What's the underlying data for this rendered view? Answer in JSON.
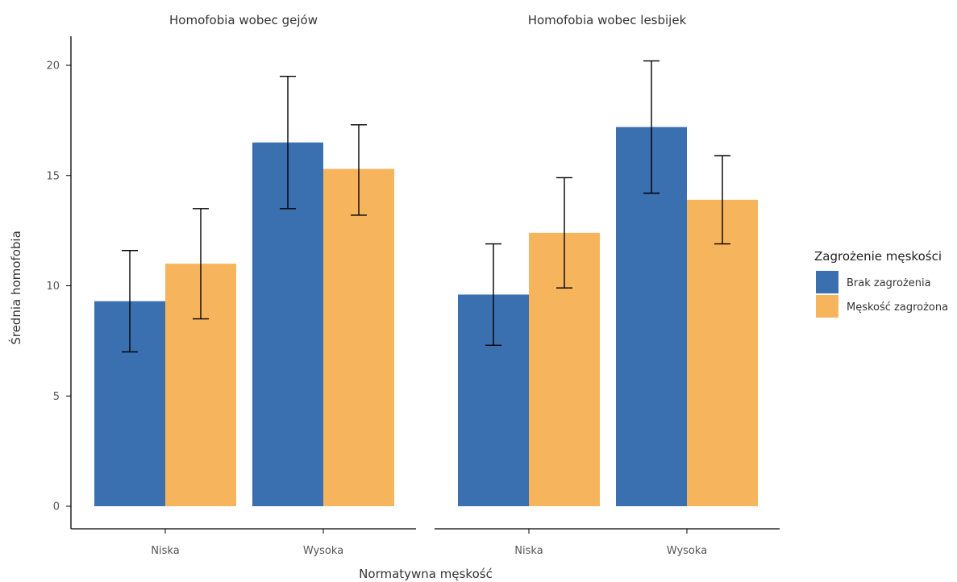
{
  "chart_data": {
    "type": "bar",
    "facets": [
      {
        "title": "Homofobia wobec gejów"
      },
      {
        "title": "Homofobia wobec lesbijek"
      }
    ],
    "categories": [
      "Niska",
      "Wysoka"
    ],
    "series": [
      {
        "name": "Brak zagrożenia",
        "color": "#3a6fb0"
      },
      {
        "name": "Męskość zagrożona",
        "color": "#f6b45c"
      }
    ],
    "data": [
      [
        [
          {
            "value": 9.3,
            "err": [
              7.0,
              11.6
            ]
          },
          {
            "value": 16.5,
            "err": [
              13.5,
              19.5
            ]
          }
        ],
        [
          {
            "value": 11.0,
            "err": [
              8.5,
              13.5
            ]
          },
          {
            "value": 15.3,
            "err": [
              13.2,
              17.3
            ]
          }
        ]
      ],
      [
        [
          {
            "value": 9.6,
            "err": [
              7.3,
              11.9
            ]
          },
          {
            "value": 17.2,
            "err": [
              14.2,
              20.2
            ]
          }
        ],
        [
          {
            "value": 12.4,
            "err": [
              9.9,
              14.9
            ]
          },
          {
            "value": 13.9,
            "err": [
              11.9,
              15.9
            ]
          }
        ]
      ]
    ],
    "xlabel": "Normatywna męskość",
    "ylabel": "Średnia homofobia",
    "ylim": [
      0,
      20
    ],
    "yticks": [
      "0",
      "5",
      "10",
      "15",
      "20"
    ],
    "grid": false,
    "legend": {
      "title": "Zagrożenie męskości",
      "position": "right"
    }
  }
}
